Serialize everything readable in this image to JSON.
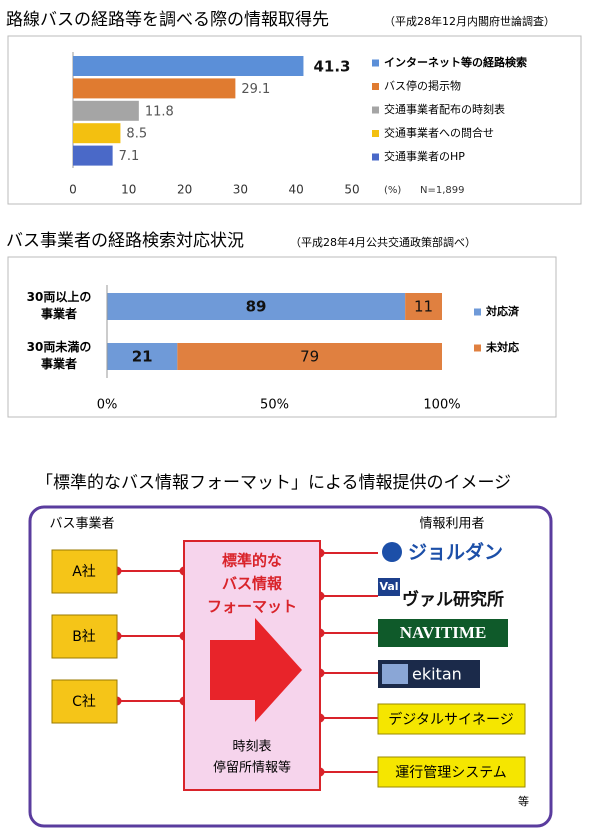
{
  "chart_data": [
    {
      "type": "bar",
      "title": "路線バスの経路等を調べる際の情報取得先",
      "subtitle": "（平成28年12月内閣府世論調査）",
      "categories": [
        "インターネット等の経路検索",
        "バス停の掲示物",
        "交通事業者配布の時刻表",
        "交通事業者への問合せ",
        "交通事業者のHP"
      ],
      "values": [
        41.3,
        29.1,
        11.8,
        8.5,
        7.1
      ],
      "colors": [
        "#5b8fd8",
        "#e07b30",
        "#a5a5a5",
        "#f3c010",
        "#4a69c8"
      ],
      "xlim": [
        0,
        50
      ],
      "xticks": [
        0,
        10,
        20,
        30,
        40,
        50
      ],
      "x_unit": "(%)",
      "note": "N=1,899"
    },
    {
      "type": "stacked_bar",
      "title": "バス事業者の経路検索対応状況",
      "subtitle": "（平成28年4月公共交通政策部調べ）",
      "categories": [
        "30両以上の事業者",
        "30両未満の事業者"
      ],
      "series": [
        {
          "name": "対応済",
          "color": "#6f9ad8",
          "values": [
            89,
            21
          ]
        },
        {
          "name": "未対応",
          "color": "#e08040",
          "values": [
            11,
            79
          ]
        }
      ],
      "xlim": [
        0,
        100
      ],
      "xticks": [
        {
          "value": 0,
          "label": "0%"
        },
        {
          "value": 50,
          "label": "50%"
        },
        {
          "value": 100,
          "label": "100%"
        }
      ]
    }
  ],
  "diagram": {
    "title": "「標準的なバス情報フォーマット」による情報提供のイメージ",
    "providers_label": "バス事業者",
    "providers": [
      "A社",
      "B社",
      "C社"
    ],
    "format_label": [
      "標準的な",
      "バス情報",
      "フォーマット"
    ],
    "format_content": [
      "時刻表",
      "停留所情報等"
    ],
    "users_label": "情報利用者",
    "users": [
      {
        "label": "ジョルダン"
      },
      {
        "icon": "Val",
        "label": "ヴァル研究所"
      },
      {
        "label": "NAVITIME"
      },
      {
        "label": "ekitan"
      },
      {
        "label": "デジタルサイネージ"
      },
      {
        "label": "運行管理システム"
      }
    ],
    "etc": "等"
  }
}
